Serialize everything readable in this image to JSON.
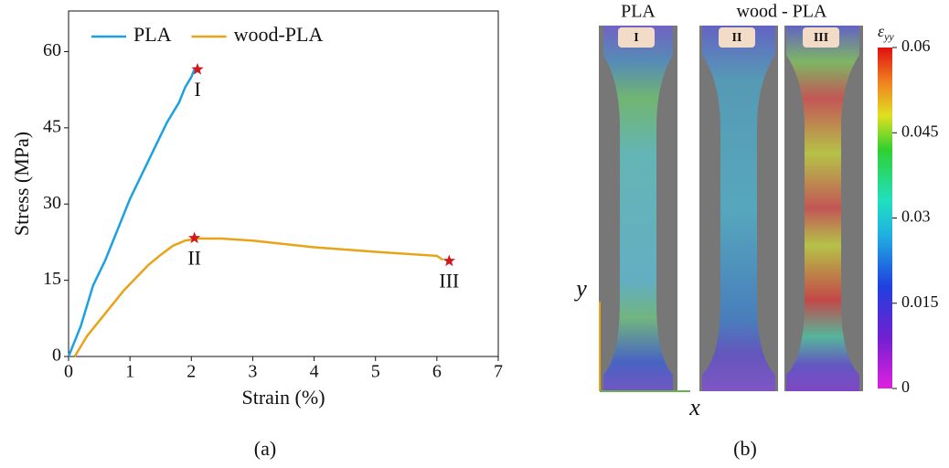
{
  "chart_data": {
    "type": "line",
    "xlabel": "Strain (%)",
    "ylabel": "Stress (MPa)",
    "caption": "(a)",
    "xlim": [
      0,
      7
    ],
    "ylim": [
      0,
      68
    ],
    "xticks": [
      0,
      1,
      2,
      3,
      4,
      5,
      6,
      7
    ],
    "yticks": [
      0,
      15,
      30,
      45,
      60
    ],
    "legend": "upper left",
    "series": [
      {
        "name": "PLA",
        "color": "#1ba1e2",
        "x": [
          0,
          0.1,
          0.2,
          0.3,
          0.4,
          0.6,
          0.8,
          1.0,
          1.2,
          1.4,
          1.6,
          1.8,
          1.9,
          2.0,
          2.05
        ],
        "y": [
          0,
          3,
          6,
          10,
          14,
          19,
          25,
          31,
          36,
          41,
          46,
          50,
          53,
          55,
          56.5
        ]
      },
      {
        "name": "wood-PLA",
        "color": "#e8a317",
        "x": [
          0.1,
          0.2,
          0.3,
          0.5,
          0.7,
          0.9,
          1.1,
          1.3,
          1.5,
          1.7,
          1.9,
          2.1,
          2.5,
          3,
          4,
          5,
          6,
          6.1
        ],
        "y": [
          0,
          2,
          4,
          7,
          10,
          13,
          15.5,
          18,
          20,
          21.8,
          22.8,
          23.2,
          23.2,
          22.8,
          21.5,
          20.6,
          19.8,
          19
        ]
      }
    ],
    "marker_color": "#d0191e",
    "markers": [
      {
        "label": "I",
        "x": 2.1,
        "y": 56.5
      },
      {
        "label": "II",
        "x": 2.05,
        "y": 23.3
      },
      {
        "label": "III",
        "x": 6.2,
        "y": 18.8
      }
    ]
  },
  "panel_b": {
    "caption": "(b)",
    "titles": [
      "PLA",
      "wood - PLA"
    ],
    "specimens": [
      "I",
      "II",
      "III"
    ],
    "axes": [
      "x",
      "y"
    ],
    "colorbar": {
      "symbol": "ε",
      "subscript": "yy",
      "lim": [
        0,
        0.06
      ],
      "ticks": [
        0,
        0.015,
        0.03,
        0.045,
        0.06
      ]
    }
  }
}
